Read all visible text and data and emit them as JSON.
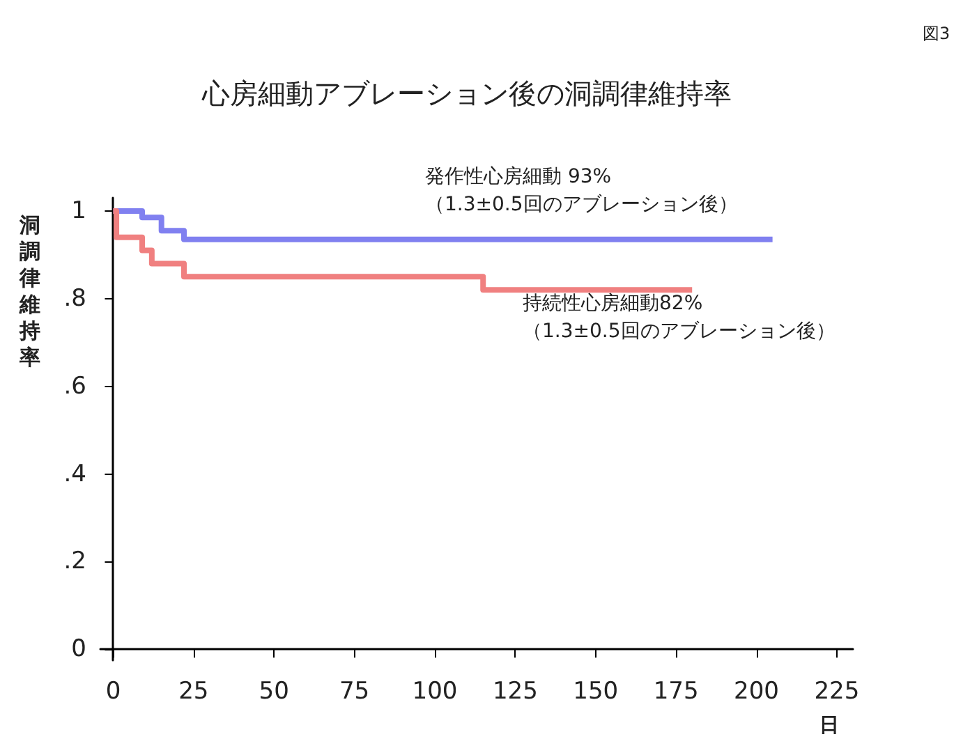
{
  "chart_data": {
    "type": "step",
    "title": "心房細動アブレーション後の洞調律維持率",
    "xlabel": "日",
    "ylabel": "洞調律維持率",
    "annotations": [
      "図3",
      "発作性心房細動 93%\n（1.3±0.5回のアブレーション後）",
      "持続性心房細動82%\n（1.3±0.5回のアブレーション後）"
    ],
    "series": [
      {
        "color": "#8080f0",
        "x": [
          0,
          9,
          15,
          22,
          205
        ],
        "values": [
          1,
          0.985,
          0.955,
          0.935,
          0.935
        ]
      },
      {
        "color": "#f08080",
        "x": [
          0,
          1,
          9,
          12,
          22,
          115,
          180
        ],
        "values": [
          1,
          0.94,
          0.91,
          0.88,
          0.85,
          0.82,
          0.82
        ]
      }
    ],
    "xlim": [
      -4,
      230
    ],
    "xticks": [
      0,
      25,
      50,
      75,
      100,
      125,
      150,
      175,
      200,
      225
    ],
    "ylim": [
      -0.025,
      1.03
    ],
    "yticks": [
      {
        "value": 0,
        "label": "0"
      },
      {
        "value": 0.2,
        "label": ".2"
      },
      {
        "value": 0.4,
        "label": ".4"
      },
      {
        "value": 0.6,
        "label": ".6"
      },
      {
        "value": 0.8,
        "label": ".8"
      },
      {
        "value": 1,
        "label": "1"
      }
    ],
    "grid": false,
    "marker": "none",
    "line_style": "solid"
  }
}
